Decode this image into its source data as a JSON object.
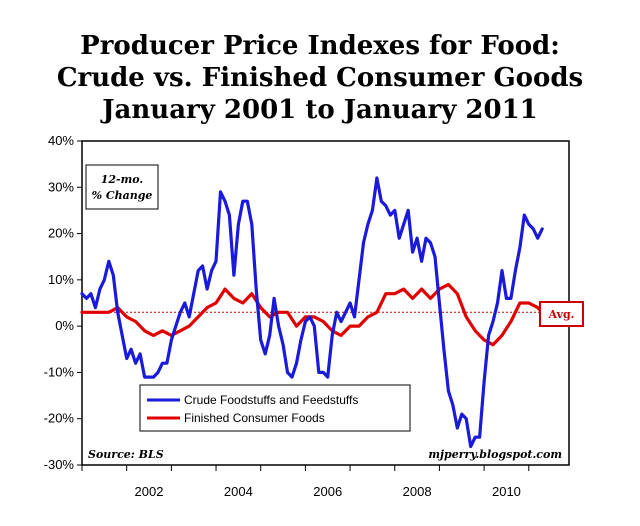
{
  "chart_data": {
    "type": "line",
    "title": [
      "Producer Price Indexes for Food:",
      "Crude vs. Finished Consumer Goods",
      "January 2001 to January 2011"
    ],
    "ylim": [
      -30,
      40
    ],
    "y_ticks": [
      -30,
      -20,
      -10,
      0,
      10,
      20,
      30,
      40
    ],
    "y_tick_labels": [
      "-30%",
      "-20%",
      "-10%",
      "0%",
      "10%",
      "20%",
      "30%",
      "40%"
    ],
    "x_ticks": [
      2002,
      2004,
      2006,
      2008,
      2010
    ],
    "x_tick_labels": [
      "2002",
      "2004",
      "2006",
      "2008",
      "2010"
    ],
    "xlim": [
      2001.0,
      2011.9
    ],
    "grid": false,
    "legend_placement": "bottom-center",
    "unit_note": [
      "12-mo.",
      "% Change"
    ],
    "source": "Source: BLS",
    "credit": "mjperry.blogspot.com",
    "average": {
      "label": "Avg.",
      "value": 3
    },
    "series": [
      {
        "name": "Crude Foodstuffs and Feedstuffs",
        "color": "#1a1adb",
        "points": [
          [
            2001.0,
            7
          ],
          [
            2001.1,
            6
          ],
          [
            2001.2,
            7
          ],
          [
            2001.3,
            4
          ],
          [
            2001.4,
            8
          ],
          [
            2001.5,
            10
          ],
          [
            2001.6,
            14
          ],
          [
            2001.7,
            11
          ],
          [
            2001.8,
            3
          ],
          [
            2001.9,
            -2
          ],
          [
            2002.0,
            -7
          ],
          [
            2002.1,
            -5
          ],
          [
            2002.2,
            -8
          ],
          [
            2002.3,
            -6
          ],
          [
            2002.4,
            -11
          ],
          [
            2002.5,
            -11
          ],
          [
            2002.6,
            -11
          ],
          [
            2002.7,
            -10
          ],
          [
            2002.8,
            -8
          ],
          [
            2002.9,
            -8
          ],
          [
            2003.0,
            -3
          ],
          [
            2003.1,
            0
          ],
          [
            2003.2,
            3
          ],
          [
            2003.3,
            5
          ],
          [
            2003.4,
            2
          ],
          [
            2003.5,
            7
          ],
          [
            2003.6,
            12
          ],
          [
            2003.7,
            13
          ],
          [
            2003.8,
            8
          ],
          [
            2003.9,
            12
          ],
          [
            2004.0,
            14
          ],
          [
            2004.1,
            29
          ],
          [
            2004.2,
            27
          ],
          [
            2004.3,
            24
          ],
          [
            2004.4,
            11
          ],
          [
            2004.5,
            22
          ],
          [
            2004.6,
            27
          ],
          [
            2004.7,
            27
          ],
          [
            2004.8,
            22
          ],
          [
            2004.9,
            8
          ],
          [
            2005.0,
            -3
          ],
          [
            2005.1,
            -6
          ],
          [
            2005.2,
            -2
          ],
          [
            2005.3,
            6
          ],
          [
            2005.4,
            0
          ],
          [
            2005.5,
            -4
          ],
          [
            2005.6,
            -10
          ],
          [
            2005.7,
            -11
          ],
          [
            2005.8,
            -8
          ],
          [
            2005.9,
            -3
          ],
          [
            2006.0,
            1
          ],
          [
            2006.1,
            2
          ],
          [
            2006.2,
            0
          ],
          [
            2006.3,
            -10
          ],
          [
            2006.4,
            -10
          ],
          [
            2006.5,
            -11
          ],
          [
            2006.6,
            -2
          ],
          [
            2006.7,
            3
          ],
          [
            2006.8,
            1
          ],
          [
            2006.9,
            3
          ],
          [
            2007.0,
            5
          ],
          [
            2007.1,
            2
          ],
          [
            2007.2,
            10
          ],
          [
            2007.3,
            18
          ],
          [
            2007.4,
            22
          ],
          [
            2007.5,
            25
          ],
          [
            2007.6,
            32
          ],
          [
            2007.7,
            27
          ],
          [
            2007.8,
            26
          ],
          [
            2007.9,
            24
          ],
          [
            2008.0,
            25
          ],
          [
            2008.1,
            19
          ],
          [
            2008.2,
            22
          ],
          [
            2008.3,
            25
          ],
          [
            2008.4,
            16
          ],
          [
            2008.5,
            19
          ],
          [
            2008.6,
            14
          ],
          [
            2008.7,
            19
          ],
          [
            2008.8,
            18
          ],
          [
            2008.9,
            15
          ],
          [
            2009.0,
            5
          ],
          [
            2009.1,
            -5
          ],
          [
            2009.2,
            -14
          ],
          [
            2009.3,
            -17
          ],
          [
            2009.4,
            -22
          ],
          [
            2009.5,
            -19
          ],
          [
            2009.6,
            -20
          ],
          [
            2009.7,
            -26
          ],
          [
            2009.8,
            -24
          ],
          [
            2009.9,
            -24
          ],
          [
            2010.0,
            -12
          ],
          [
            2010.1,
            -2
          ],
          [
            2010.2,
            1
          ],
          [
            2010.3,
            5
          ],
          [
            2010.4,
            12
          ],
          [
            2010.5,
            6
          ],
          [
            2010.6,
            6
          ],
          [
            2010.7,
            12
          ],
          [
            2010.8,
            17
          ],
          [
            2010.9,
            24
          ],
          [
            2011.0,
            22
          ],
          [
            2011.1,
            21
          ],
          [
            2011.2,
            19
          ],
          [
            2011.3,
            21
          ]
        ]
      },
      {
        "name": "Finished Consumer Foods",
        "color": "#e00000",
        "points": [
          [
            2001.0,
            3
          ],
          [
            2001.2,
            3
          ],
          [
            2001.4,
            3
          ],
          [
            2001.6,
            3
          ],
          [
            2001.8,
            4
          ],
          [
            2002.0,
            2
          ],
          [
            2002.2,
            1
          ],
          [
            2002.4,
            -1
          ],
          [
            2002.6,
            -2
          ],
          [
            2002.8,
            -1
          ],
          [
            2003.0,
            -2
          ],
          [
            2003.2,
            -1
          ],
          [
            2003.4,
            0
          ],
          [
            2003.6,
            2
          ],
          [
            2003.8,
            4
          ],
          [
            2004.0,
            5
          ],
          [
            2004.2,
            8
          ],
          [
            2004.4,
            6
          ],
          [
            2004.6,
            5
          ],
          [
            2004.8,
            7
          ],
          [
            2005.0,
            4
          ],
          [
            2005.2,
            2
          ],
          [
            2005.4,
            3
          ],
          [
            2005.6,
            3
          ],
          [
            2005.8,
            0
          ],
          [
            2006.0,
            2
          ],
          [
            2006.2,
            2
          ],
          [
            2006.4,
            1
          ],
          [
            2006.6,
            -1
          ],
          [
            2006.8,
            -2
          ],
          [
            2007.0,
            0
          ],
          [
            2007.2,
            0
          ],
          [
            2007.4,
            2
          ],
          [
            2007.6,
            3
          ],
          [
            2007.8,
            7
          ],
          [
            2008.0,
            7
          ],
          [
            2008.2,
            8
          ],
          [
            2008.4,
            6
          ],
          [
            2008.6,
            8
          ],
          [
            2008.8,
            6
          ],
          [
            2009.0,
            8
          ],
          [
            2009.2,
            9
          ],
          [
            2009.4,
            7
          ],
          [
            2009.6,
            2
          ],
          [
            2009.8,
            -1
          ],
          [
            2010.0,
            -3
          ],
          [
            2010.2,
            -4
          ],
          [
            2010.4,
            -2
          ],
          [
            2010.6,
            1
          ],
          [
            2010.8,
            5
          ],
          [
            2011.0,
            5
          ],
          [
            2011.2,
            4
          ],
          [
            2011.3,
            3
          ]
        ]
      }
    ]
  }
}
